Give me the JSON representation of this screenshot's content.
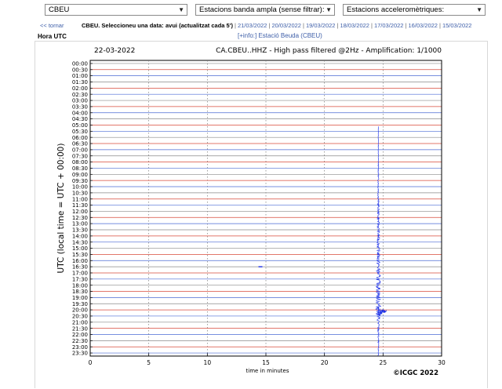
{
  "selectors": {
    "station": "CBEU",
    "broadband": "Estacions banda ampla (sense filtrar):",
    "accelerometric": "Estacions acceleromètriques:"
  },
  "nav": {
    "back": "<< tornar",
    "station_prompt": "CBEU. Seleccioneu una data:",
    "today": "avui (actualitzat cada 5')",
    "dates": [
      "21/03/2022",
      "20/03/2022",
      "19/03/2022",
      "18/03/2022",
      "17/03/2022",
      "16/03/2022",
      "15/03/2022"
    ]
  },
  "utc_header": "Hora UTC",
  "info_link": "[+info:] Estació Beuda (CBEU)",
  "chart_data": {
    "type": "line",
    "date": "22-03-2022",
    "title": "CA.CBEU..HHZ - High pass filtered @2Hz - Amplification: 1/1000",
    "ylabel": "UTC (local time = UTC + 00:00)",
    "xlabel": "time in minutes",
    "copyright": "©ICGC 2022",
    "xlim": [
      0,
      30
    ],
    "xticks": [
      "0",
      "5",
      "10",
      "15",
      "20",
      "25",
      "30"
    ],
    "grid": "vertical dashed at each x tick",
    "trace_colors": [
      "#8a8a8a",
      "#d84a3a",
      "#4a6ad4"
    ],
    "rows": [
      "00:00",
      "00:30",
      "01:00",
      "01:30",
      "02:00",
      "02:30",
      "03:00",
      "03:30",
      "04:00",
      "04:30",
      "05:00",
      "05:30",
      "06:00",
      "06:30",
      "07:00",
      "07:30",
      "08:00",
      "08:30",
      "09:00",
      "09:30",
      "10:00",
      "10:30",
      "11:00",
      "11:30",
      "12:00",
      "12:30",
      "13:00",
      "13:30",
      "14:00",
      "14:30",
      "15:00",
      "15:30",
      "16:00",
      "16:30",
      "17:00",
      "17:30",
      "18:00",
      "18:30",
      "19:00",
      "19:30",
      "20:00",
      "20:30",
      "21:00",
      "21:30",
      "22:00",
      "22:30",
      "23:00",
      "23:30"
    ],
    "event": {
      "color": "#1a2ee8",
      "minute": 24.6,
      "start_row": "05:00",
      "peak_row": "20:00",
      "end_row": "23:30",
      "decay_end_minute": 25.3
    },
    "blip": {
      "row": "16:30",
      "minute": 14.5
    }
  }
}
